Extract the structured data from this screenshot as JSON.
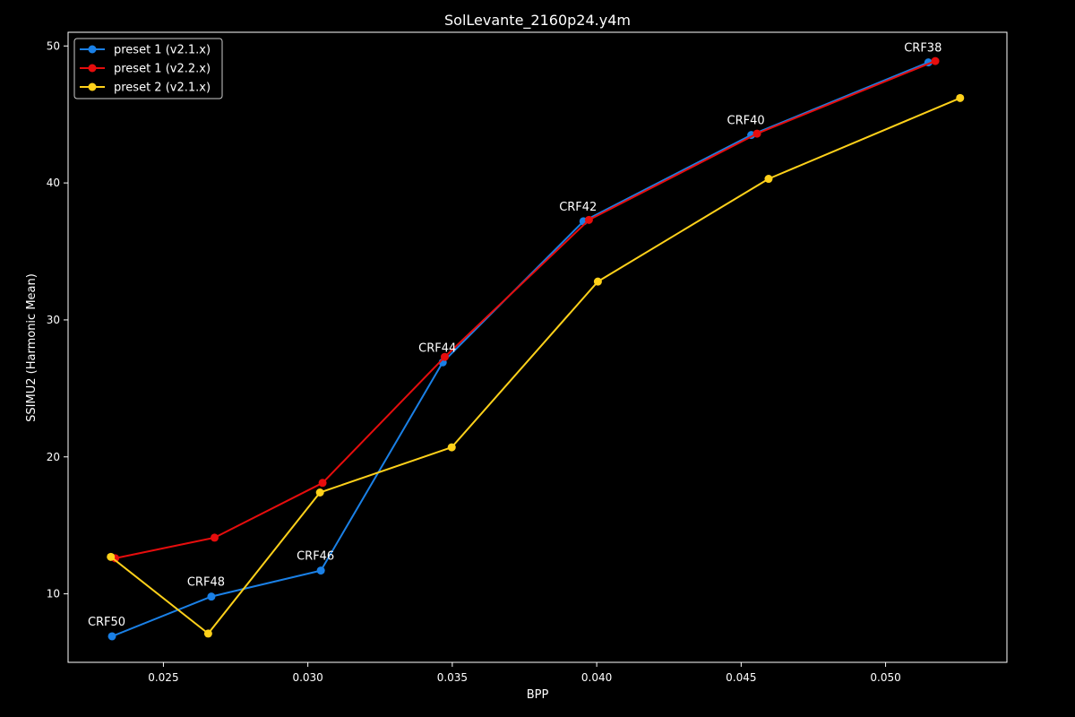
{
  "chart_data": {
    "type": "line",
    "title": "SolLevante_2160p24.y4m",
    "xlabel": "BPP",
    "ylabel": "SSIMU2 (Harmonic Mean)",
    "xlim": [
      0.0217,
      0.0542
    ],
    "ylim": [
      5.0,
      51.0
    ],
    "xticks": [
      0.025,
      0.03,
      0.035,
      0.04,
      0.045,
      0.05
    ],
    "xtick_labels": [
      "0.025",
      "0.030",
      "0.035",
      "0.040",
      "0.045",
      "0.050"
    ],
    "yticks": [
      10,
      20,
      30,
      40,
      50
    ],
    "ytick_labels": [
      "10",
      "20",
      "30",
      "40",
      "50"
    ],
    "grid": false,
    "legend_position": "top-left",
    "series": [
      {
        "name": "preset 1 (v2.1.x)",
        "color": "#1a80e6",
        "points": [
          {
            "x": 0.02322,
            "y": 6.9
          },
          {
            "x": 0.02666,
            "y": 9.8
          },
          {
            "x": 0.03045,
            "y": 11.7
          },
          {
            "x": 0.03467,
            "y": 26.9
          },
          {
            "x": 0.03954,
            "y": 37.2
          },
          {
            "x": 0.04535,
            "y": 43.5
          },
          {
            "x": 0.05148,
            "y": 48.8
          }
        ]
      },
      {
        "name": "preset 1 (v2.2.x)",
        "color": "#e60d0d",
        "points": [
          {
            "x": 0.02333,
            "y": 12.6
          },
          {
            "x": 0.02677,
            "y": 14.1
          },
          {
            "x": 0.03051,
            "y": 18.1
          },
          {
            "x": 0.03474,
            "y": 27.3
          },
          {
            "x": 0.03973,
            "y": 37.3
          },
          {
            "x": 0.04555,
            "y": 43.6
          },
          {
            "x": 0.05172,
            "y": 48.9
          }
        ]
      },
      {
        "name": "preset 2 (v2.1.x)",
        "color": "#ffd11a",
        "points": [
          {
            "x": 0.02318,
            "y": 12.7
          },
          {
            "x": 0.02655,
            "y": 7.1
          },
          {
            "x": 0.03042,
            "y": 17.4
          },
          {
            "x": 0.03498,
            "y": 20.7
          },
          {
            "x": 0.04004,
            "y": 32.8
          },
          {
            "x": 0.04595,
            "y": 40.3
          },
          {
            "x": 0.05258,
            "y": 46.2
          }
        ]
      }
    ],
    "annotations": [
      {
        "text": "CRF50",
        "x": 0.02322,
        "y": 6.9
      },
      {
        "text": "CRF48",
        "x": 0.02666,
        "y": 9.8
      },
      {
        "text": "CRF46",
        "x": 0.03045,
        "y": 11.7
      },
      {
        "text": "CRF44",
        "x": 0.03467,
        "y": 26.9
      },
      {
        "text": "CRF42",
        "x": 0.03954,
        "y": 37.2
      },
      {
        "text": "CRF40",
        "x": 0.04535,
        "y": 43.5
      },
      {
        "text": "CRF38",
        "x": 0.05148,
        "y": 48.8
      }
    ]
  }
}
